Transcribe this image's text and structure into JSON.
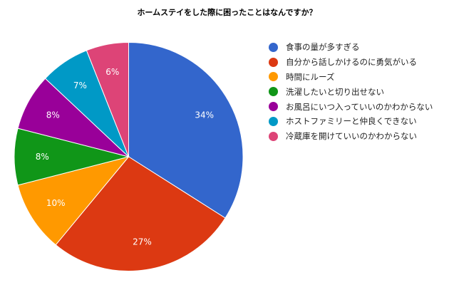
{
  "chart_data": {
    "type": "pie",
    "title": "ホームステイをした際に困ったことはなんですか？",
    "start_angle_deg": 0,
    "direction": "clockwise",
    "legend_position": "right",
    "slices": [
      {
        "label": "食事の量が多すぎる",
        "value": 34,
        "display": "34%",
        "color": "#3366cc"
      },
      {
        "label": "自分から話しかけるのに勇気がいる",
        "value": 27,
        "display": "27%",
        "color": "#dc3912"
      },
      {
        "label": "時間にルーズ",
        "value": 10,
        "display": "10%",
        "color": "#ff9900"
      },
      {
        "label": "洗濯したいと切り出せない",
        "value": 8,
        "display": "8%",
        "color": "#109618"
      },
      {
        "label": "お風呂にいつ入っていいのかわからない",
        "value": 8,
        "display": "8%",
        "color": "#990099"
      },
      {
        "label": "ホストファミリーと仲良くできない",
        "value": 7,
        "display": "7%",
        "color": "#0099c6"
      },
      {
        "label": "冷蔵庫を開けていいのかわからない",
        "value": 6,
        "display": "6%",
        "color": "#dd4477"
      }
    ],
    "categories": [
      "食事の量が多すぎる",
      "自分から話しかけるのに勇気がいる",
      "時間にルーズ",
      "洗濯したいと切り出せない",
      "お風呂にいつ入っていいのかわからない",
      "ホストファミリーと仲良くできない",
      "冷蔵庫を開けていいのかわからない"
    ],
    "values": [
      34,
      27,
      10,
      8,
      8,
      7,
      6
    ]
  }
}
